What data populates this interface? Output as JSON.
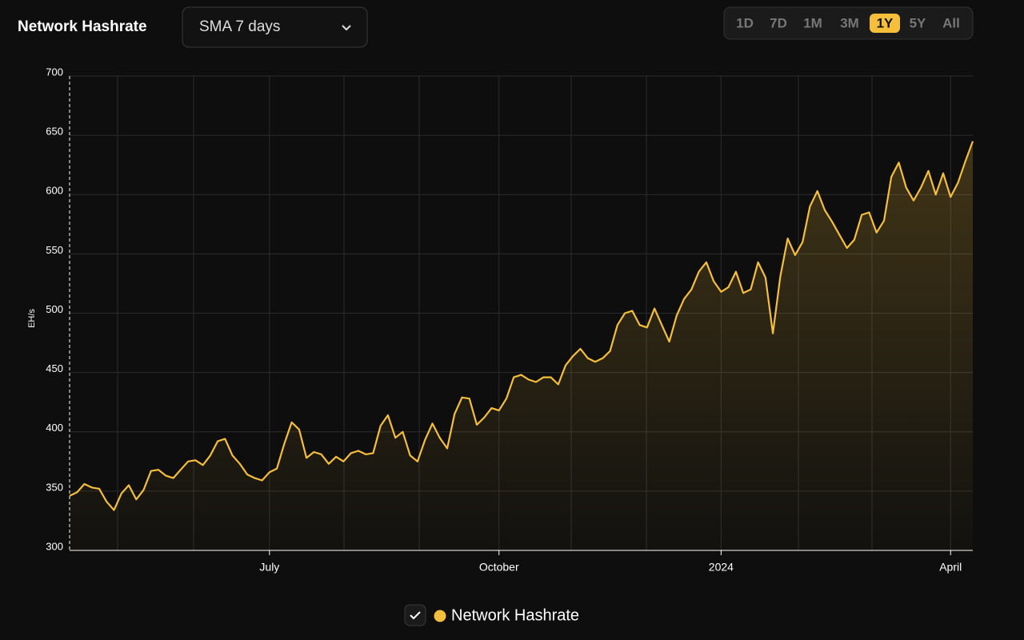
{
  "chart_data": {
    "type": "line",
    "title": "Network Hashrate",
    "controls": {
      "smoothing": "SMA 7 days",
      "ranges": [
        "1D",
        "7D",
        "1M",
        "3M",
        "1Y",
        "5Y",
        "All"
      ],
      "active_range": "1Y"
    },
    "y_label": "EH/s",
    "ylim": [
      300,
      700
    ],
    "yticks": [
      300,
      350,
      400,
      450,
      500,
      550,
      600,
      650,
      700
    ],
    "grid": true,
    "categories": [
      null,
      null,
      null,
      null,
      null,
      null,
      null,
      null,
      null,
      null,
      null,
      null,
      null,
      null,
      null,
      null,
      null,
      null,
      null,
      null,
      null,
      null,
      null,
      null,
      null,
      null,
      null,
      "July",
      null,
      null,
      null,
      null,
      null,
      null,
      null,
      null,
      null,
      null,
      null,
      null,
      null,
      null,
      null,
      null,
      null,
      null,
      null,
      null,
      null,
      null,
      null,
      null,
      null,
      null,
      null,
      null,
      null,
      null,
      "October",
      null,
      null,
      null,
      null,
      null,
      null,
      null,
      null,
      null,
      null,
      null,
      null,
      null,
      null,
      null,
      null,
      null,
      null,
      null,
      null,
      null,
      null,
      null,
      null,
      null,
      null,
      null,
      null,
      null,
      "2024",
      null,
      null,
      null,
      null,
      null,
      null,
      null,
      null,
      null,
      null,
      null,
      null,
      null,
      null,
      null,
      null,
      null,
      null,
      null,
      null,
      null,
      null,
      null,
      null,
      null,
      null,
      null,
      null,
      null,
      null,
      "April",
      null,
      null,
      null
    ],
    "series": [
      {
        "name": "Network Hashrate",
        "color": "#f5be3b",
        "values": [
          346,
          349,
          356,
          353,
          352,
          341,
          334,
          348,
          355,
          343,
          351,
          367,
          368,
          363,
          361,
          368,
          375,
          376,
          372,
          380,
          392,
          394,
          380,
          373,
          364,
          361,
          359,
          366,
          369,
          390,
          408,
          402,
          378,
          383,
          381,
          373,
          379,
          375,
          382,
          384,
          381,
          382,
          405,
          414,
          395,
          400,
          380,
          375,
          393,
          407,
          395,
          386,
          415,
          429,
          428,
          406,
          412,
          420,
          418,
          428,
          446,
          448,
          444,
          442,
          446,
          446,
          440,
          456,
          464,
          470,
          462,
          459,
          462,
          468,
          490,
          500,
          502,
          490,
          488,
          504,
          490,
          476,
          498,
          512,
          520,
          535,
          543,
          527,
          518,
          522,
          535,
          517,
          520,
          543,
          530,
          483,
          531,
          563,
          549,
          560,
          590,
          603,
          587,
          577,
          566,
          555,
          562,
          583,
          585,
          568,
          578,
          615,
          627,
          606,
          595,
          606,
          620,
          600,
          618,
          598,
          610,
          628,
          645
        ]
      }
    ]
  }
}
